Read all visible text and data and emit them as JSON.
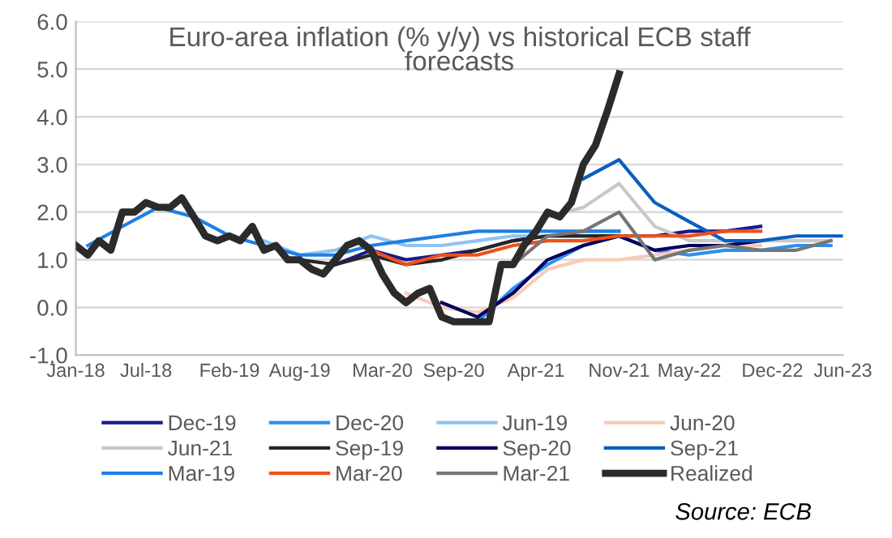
{
  "chart_data": {
    "type": "line",
    "title": "Euro-area inflation (% y/y) vs historical ECB staff forecasts",
    "xlim": [
      "2018-01",
      "2023-06"
    ],
    "xticks": [
      {
        "value": "2018-01",
        "label": "Jan-18"
      },
      {
        "value": "2018-07",
        "label": "Jul-18"
      },
      {
        "value": "2019-02",
        "label": "Feb-19"
      },
      {
        "value": "2019-08",
        "label": "Aug-19"
      },
      {
        "value": "2020-03",
        "label": "Mar-20"
      },
      {
        "value": "2020-09",
        "label": "Sep-20"
      },
      {
        "value": "2021-04",
        "label": "Apr-21"
      },
      {
        "value": "2021-11",
        "label": "Nov-21"
      },
      {
        "value": "2022-05",
        "label": "May-22"
      },
      {
        "value": "2022-12",
        "label": "Dec-22"
      },
      {
        "value": "2023-06",
        "label": "Jun-23"
      }
    ],
    "ylim": [
      -1,
      6
    ],
    "yticks": [
      {
        "value": -1,
        "label": "-1.0"
      },
      {
        "value": 0,
        "label": "0.0"
      },
      {
        "value": 1,
        "label": "1.0"
      },
      {
        "value": 2,
        "label": "2.0"
      },
      {
        "value": 3,
        "label": "3.0"
      },
      {
        "value": 4,
        "label": "4.0"
      },
      {
        "value": 5,
        "label": "5.0"
      },
      {
        "value": 6,
        "label": "6.0"
      }
    ],
    "grid": "y",
    "legend": "bottom",
    "marker": "none",
    "line_style": "solid",
    "annotations": [
      "Source: ECB"
    ],
    "series": [
      {
        "name": "Dec-19",
        "color": "#1a1a8c",
        "x": [
          "2019-11",
          "2020-02",
          "2020-05",
          "2020-08",
          "2020-11",
          "2021-02",
          "2021-05",
          "2021-08",
          "2021-11",
          "2022-02",
          "2022-05",
          "2022-08",
          "2022-11"
        ],
        "values": [
          0.9,
          1.2,
          1.0,
          1.1,
          1.2,
          1.4,
          1.5,
          1.5,
          1.5,
          1.5,
          1.6,
          1.6,
          1.7
        ]
      },
      {
        "name": "Dec-20",
        "color": "#2f8fef",
        "x": [
          "2020-11",
          "2021-02",
          "2021-05",
          "2021-08",
          "2021-11",
          "2022-02",
          "2022-05",
          "2022-08",
          "2022-11",
          "2023-02",
          "2023-05"
        ],
        "values": [
          -0.3,
          0.4,
          0.9,
          1.3,
          1.5,
          1.2,
          1.1,
          1.2,
          1.2,
          1.3,
          1.3
        ]
      },
      {
        "name": "Jun-19",
        "color": "#8fc3f3",
        "x": [
          "2019-05",
          "2019-08",
          "2019-11",
          "2020-02",
          "2020-05",
          "2020-08",
          "2020-11",
          "2021-02",
          "2021-05",
          "2021-08",
          "2021-11"
        ],
        "values": [
          1.4,
          1.1,
          1.2,
          1.5,
          1.3,
          1.3,
          1.4,
          1.5,
          1.5,
          1.6,
          1.6
        ]
      },
      {
        "name": "Jun-20",
        "color": "#f8cbb8",
        "x": [
          "2020-05",
          "2020-08",
          "2020-11",
          "2021-02",
          "2021-05",
          "2021-08",
          "2021-11",
          "2022-02",
          "2022-05",
          "2022-08",
          "2022-11"
        ],
        "values": [
          0.3,
          0.0,
          -0.1,
          0.2,
          0.8,
          1.0,
          1.0,
          1.1,
          1.2,
          1.3,
          1.3
        ]
      },
      {
        "name": "Jun-21",
        "color": "#c8c8c8",
        "x": [
          "2021-05",
          "2021-08",
          "2021-11",
          "2022-02",
          "2022-05",
          "2022-08",
          "2022-11",
          "2023-02",
          "2023-05"
        ],
        "values": [
          1.9,
          2.1,
          2.6,
          1.7,
          1.4,
          1.4,
          1.4,
          1.4,
          1.4
        ]
      },
      {
        "name": "Sep-19",
        "color": "#262626",
        "x": [
          "2019-08",
          "2019-11",
          "2020-02",
          "2020-05",
          "2020-08",
          "2020-11",
          "2021-02",
          "2021-05",
          "2021-08",
          "2021-11"
        ],
        "values": [
          1.0,
          0.9,
          1.1,
          0.9,
          1.0,
          1.2,
          1.4,
          1.5,
          1.5,
          1.5
        ]
      },
      {
        "name": "Sep-20",
        "color": "#00005c",
        "x": [
          "2020-08",
          "2020-11",
          "2021-02",
          "2021-05",
          "2021-08",
          "2021-11",
          "2022-02",
          "2022-05",
          "2022-08",
          "2022-11"
        ],
        "values": [
          0.1,
          -0.2,
          0.3,
          1.0,
          1.3,
          1.5,
          1.2,
          1.3,
          1.3,
          1.4
        ]
      },
      {
        "name": "Sep-21",
        "color": "#0a5fc0",
        "x": [
          "2021-08",
          "2021-11",
          "2022-02",
          "2022-05",
          "2022-08",
          "2022-11",
          "2023-02",
          "2023-06"
        ],
        "values": [
          2.7,
          3.1,
          2.2,
          1.8,
          1.4,
          1.4,
          1.5,
          1.5
        ]
      },
      {
        "name": "Mar-19",
        "color": "#1f7fe6",
        "x": [
          "2018-02",
          "2018-05",
          "2018-08",
          "2018-11",
          "2019-02",
          "2019-05",
          "2019-08",
          "2019-11",
          "2020-02",
          "2020-05",
          "2020-08",
          "2020-11",
          "2021-02",
          "2021-05",
          "2021-08",
          "2021-11"
        ],
        "values": [
          1.3,
          1.7,
          2.1,
          1.9,
          1.5,
          1.3,
          1.1,
          1.1,
          1.3,
          1.4,
          1.5,
          1.6,
          1.6,
          1.6,
          1.6,
          1.6
        ]
      },
      {
        "name": "Mar-20",
        "color": "#f0501a",
        "x": [
          "2020-02",
          "2020-05",
          "2020-08",
          "2020-11",
          "2021-02",
          "2021-05",
          "2021-08",
          "2021-11",
          "2022-02",
          "2022-05",
          "2022-08",
          "2022-11"
        ],
        "values": [
          1.2,
          0.9,
          1.1,
          1.1,
          1.3,
          1.4,
          1.4,
          1.5,
          1.5,
          1.5,
          1.6,
          1.6
        ]
      },
      {
        "name": "Mar-21",
        "color": "#767676",
        "x": [
          "2021-02",
          "2021-05",
          "2021-08",
          "2021-11",
          "2022-02",
          "2022-05",
          "2022-08",
          "2022-11",
          "2023-02",
          "2023-05"
        ],
        "values": [
          0.9,
          1.5,
          1.6,
          2.0,
          1.0,
          1.2,
          1.3,
          1.2,
          1.2,
          1.4
        ]
      },
      {
        "name": "Realized",
        "color": "#2b2b2b",
        "x": [
          "2018-01",
          "2018-02",
          "2018-03",
          "2018-04",
          "2018-05",
          "2018-06",
          "2018-07",
          "2018-08",
          "2018-09",
          "2018-10",
          "2018-11",
          "2018-12",
          "2019-01",
          "2019-02",
          "2019-03",
          "2019-04",
          "2019-05",
          "2019-06",
          "2019-07",
          "2019-08",
          "2019-09",
          "2019-10",
          "2019-11",
          "2019-12",
          "2020-01",
          "2020-02",
          "2020-03",
          "2020-04",
          "2020-05",
          "2020-06",
          "2020-07",
          "2020-08",
          "2020-09",
          "2020-10",
          "2020-11",
          "2020-12",
          "2021-01",
          "2021-02",
          "2021-03",
          "2021-04",
          "2021-05",
          "2021-06",
          "2021-07",
          "2021-08",
          "2021-09",
          "2021-10",
          "2021-11"
        ],
        "values": [
          1.3,
          1.1,
          1.4,
          1.2,
          2.0,
          2.0,
          2.2,
          2.1,
          2.1,
          2.3,
          1.9,
          1.5,
          1.4,
          1.5,
          1.4,
          1.7,
          1.2,
          1.3,
          1.0,
          1.0,
          0.8,
          0.7,
          1.0,
          1.3,
          1.4,
          1.2,
          0.7,
          0.3,
          0.1,
          0.3,
          0.4,
          -0.2,
          -0.3,
          -0.3,
          -0.3,
          -0.3,
          0.9,
          0.9,
          1.3,
          1.6,
          2.0,
          1.9,
          2.2,
          3.0,
          3.4,
          4.1,
          4.9
        ]
      }
    ]
  }
}
